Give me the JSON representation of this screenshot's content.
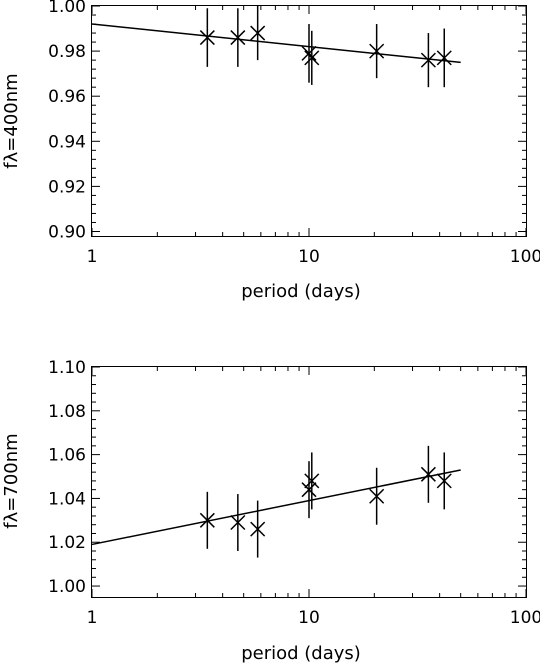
{
  "chart_data": [
    {
      "type": "scatter",
      "title": "",
      "xlabel": "period (days)",
      "ylabel": "fλ=400nm",
      "xscale": "log",
      "xlim": [
        1,
        100
      ],
      "ylim": [
        0.898,
        1.0
      ],
      "xticks": [
        1,
        10,
        100
      ],
      "xtick_labels": [
        "1",
        "10",
        "100"
      ],
      "yticks": [
        0.9,
        0.92,
        0.94,
        0.96,
        0.98,
        1.0
      ],
      "ytick_labels": [
        "0.90",
        "0.92",
        "0.94",
        "0.96",
        "0.98",
        "1.00"
      ],
      "grid": false,
      "legend": "none",
      "marker": "x",
      "color": "#000000",
      "points": [
        {
          "x": 3.4,
          "y": 0.986,
          "yerr": 0.013
        },
        {
          "x": 4.7,
          "y": 0.986,
          "yerr": 0.013
        },
        {
          "x": 5.8,
          "y": 0.988,
          "yerr": 0.012
        },
        {
          "x": 10.0,
          "y": 0.979,
          "yerr": 0.013
        },
        {
          "x": 10.3,
          "y": 0.977,
          "yerr": 0.012
        },
        {
          "x": 20.5,
          "y": 0.98,
          "yerr": 0.012
        },
        {
          "x": 35.5,
          "y": 0.976,
          "yerr": 0.012
        },
        {
          "x": 42.0,
          "y": 0.977,
          "yerr": 0.013
        }
      ],
      "fit_line": {
        "x": [
          1,
          50
        ],
        "y": [
          0.992,
          0.975
        ]
      }
    },
    {
      "type": "scatter",
      "title": "",
      "xlabel": "period (days)",
      "ylabel": "fλ=700nm",
      "xscale": "log",
      "xlim": [
        1,
        100
      ],
      "ylim": [
        0.995,
        1.1
      ],
      "xticks": [
        1,
        10,
        100
      ],
      "xtick_labels": [
        "1",
        "10",
        "100"
      ],
      "yticks": [
        1.0,
        1.02,
        1.04,
        1.06,
        1.08,
        1.1
      ],
      "ytick_labels": [
        "1.00",
        "1.02",
        "1.04",
        "1.06",
        "1.08",
        "1.10"
      ],
      "grid": false,
      "legend": "none",
      "marker": "x",
      "color": "#000000",
      "points": [
        {
          "x": 3.4,
          "y": 1.03,
          "yerr": 0.013
        },
        {
          "x": 4.7,
          "y": 1.029,
          "yerr": 0.013
        },
        {
          "x": 5.8,
          "y": 1.026,
          "yerr": 0.013
        },
        {
          "x": 10.0,
          "y": 1.044,
          "yerr": 0.013
        },
        {
          "x": 10.3,
          "y": 1.048,
          "yerr": 0.013
        },
        {
          "x": 20.5,
          "y": 1.041,
          "yerr": 0.013
        },
        {
          "x": 35.5,
          "y": 1.051,
          "yerr": 0.013
        },
        {
          "x": 42.0,
          "y": 1.048,
          "yerr": 0.013
        }
      ],
      "fit_line": {
        "x": [
          1,
          50
        ],
        "y": [
          1.019,
          1.053
        ]
      }
    }
  ]
}
